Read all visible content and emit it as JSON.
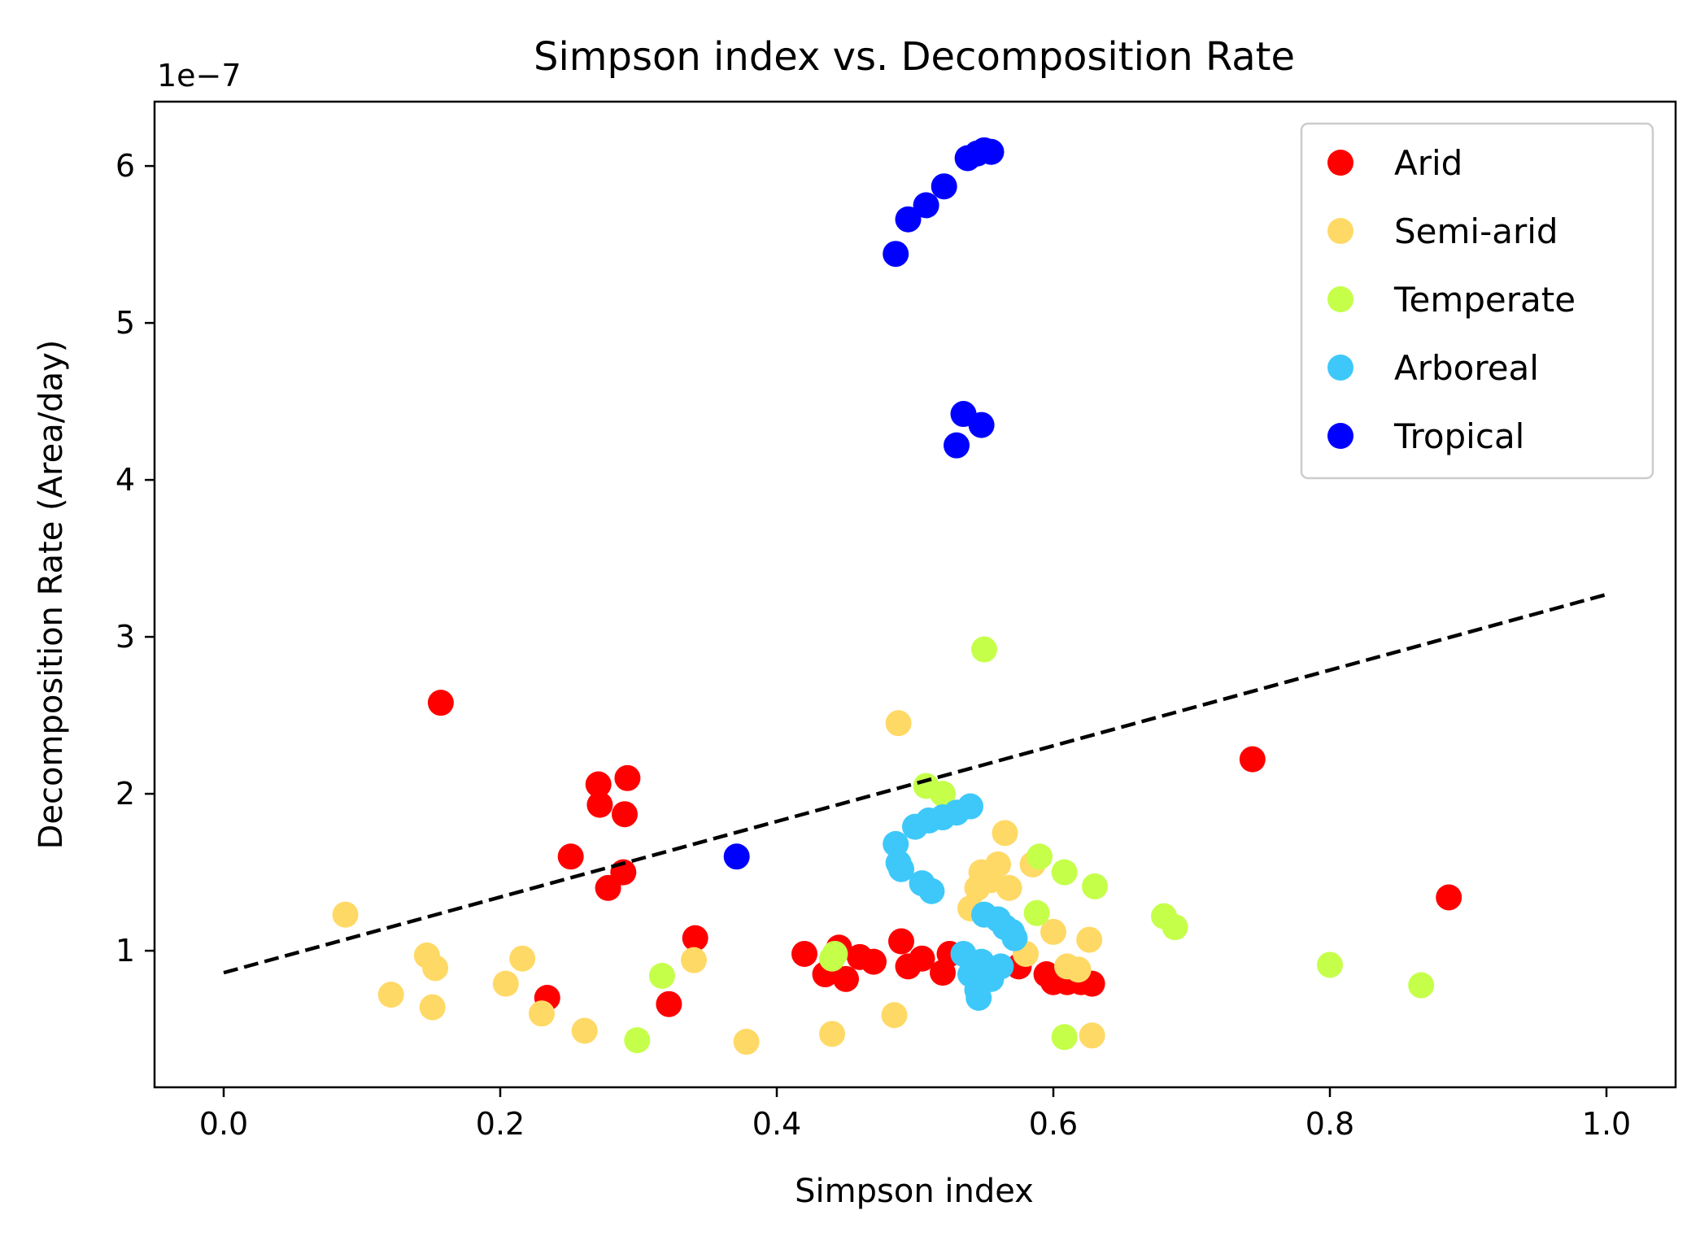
{
  "chart_data": {
    "type": "scatter",
    "title": "Simpson index vs. Decomposition Rate",
    "xlabel": "Simpson index",
    "ylabel": "Decomposition Rate (Area/day)",
    "y_offset_label": "1e−7",
    "xlim": [
      -0.05,
      1.05
    ],
    "ylim": [
      0.13,
      6.41
    ],
    "x_ticks": [
      0.0,
      0.2,
      0.4,
      0.6,
      0.8,
      1.0
    ],
    "x_tick_labels": [
      "0.0",
      "0.2",
      "0.4",
      "0.6",
      "0.8",
      "1.0"
    ],
    "y_ticks": [
      1,
      2,
      3,
      4,
      5,
      6
    ],
    "y_tick_labels": [
      "1",
      "2",
      "3",
      "4",
      "5",
      "6"
    ],
    "grid": false,
    "legend_position": "top-right",
    "trendline": {
      "style": "dashed",
      "color": "#000000",
      "x": [
        0.0,
        1.0
      ],
      "y": [
        0.86,
        3.27
      ]
    },
    "series": [
      {
        "name": "Arid",
        "color": "#ff0000",
        "points": [
          [
            0.157,
            2.58
          ],
          [
            0.234,
            0.7
          ],
          [
            0.251,
            1.6
          ],
          [
            0.271,
            2.06
          ],
          [
            0.272,
            1.93
          ],
          [
            0.278,
            1.4
          ],
          [
            0.289,
            1.5
          ],
          [
            0.29,
            1.87
          ],
          [
            0.292,
            2.1
          ],
          [
            0.322,
            0.66
          ],
          [
            0.341,
            1.08
          ],
          [
            0.42,
            0.98
          ],
          [
            0.435,
            0.85
          ],
          [
            0.445,
            1.02
          ],
          [
            0.45,
            0.82
          ],
          [
            0.46,
            0.96
          ],
          [
            0.47,
            0.93
          ],
          [
            0.49,
            1.06
          ],
          [
            0.495,
            0.9
          ],
          [
            0.505,
            0.95
          ],
          [
            0.52,
            0.86
          ],
          [
            0.525,
            0.98
          ],
          [
            0.575,
            0.9
          ],
          [
            0.595,
            0.85
          ],
          [
            0.6,
            0.8
          ],
          [
            0.61,
            0.8
          ],
          [
            0.62,
            0.8
          ],
          [
            0.628,
            0.79
          ],
          [
            0.744,
            2.22
          ],
          [
            0.886,
            1.34
          ]
        ]
      },
      {
        "name": "Semi-arid",
        "color": "#ffd966",
        "points": [
          [
            0.088,
            1.23
          ],
          [
            0.121,
            0.72
          ],
          [
            0.147,
            0.97
          ],
          [
            0.151,
            0.64
          ],
          [
            0.153,
            0.89
          ],
          [
            0.204,
            0.79
          ],
          [
            0.216,
            0.95
          ],
          [
            0.23,
            0.6
          ],
          [
            0.261,
            0.49
          ],
          [
            0.34,
            0.94
          ],
          [
            0.378,
            0.42
          ],
          [
            0.44,
            0.47
          ],
          [
            0.485,
            0.59
          ],
          [
            0.488,
            2.45
          ],
          [
            0.54,
            1.27
          ],
          [
            0.545,
            1.4
          ],
          [
            0.548,
            1.5
          ],
          [
            0.555,
            1.45
          ],
          [
            0.56,
            1.55
          ],
          [
            0.565,
            1.75
          ],
          [
            0.568,
            1.4
          ],
          [
            0.58,
            0.98
          ],
          [
            0.585,
            1.55
          ],
          [
            0.6,
            1.12
          ],
          [
            0.61,
            0.9
          ],
          [
            0.618,
            0.88
          ],
          [
            0.626,
            1.07
          ],
          [
            0.628,
            0.46
          ]
        ]
      },
      {
        "name": "Temperate",
        "color": "#c5ff4a",
        "points": [
          [
            0.299,
            0.43
          ],
          [
            0.317,
            0.84
          ],
          [
            0.44,
            0.95
          ],
          [
            0.442,
            0.98
          ],
          [
            0.508,
            2.05
          ],
          [
            0.52,
            2.0
          ],
          [
            0.55,
            2.92
          ],
          [
            0.588,
            1.24
          ],
          [
            0.59,
            1.6
          ],
          [
            0.608,
            1.5
          ],
          [
            0.608,
            0.45
          ],
          [
            0.63,
            1.41
          ],
          [
            0.68,
            1.22
          ],
          [
            0.688,
            1.15
          ],
          [
            0.8,
            0.91
          ],
          [
            0.866,
            0.78
          ]
        ]
      },
      {
        "name": "Arboreal",
        "color": "#3ec8fa",
        "points": [
          [
            0.486,
            1.68
          ],
          [
            0.488,
            1.56
          ],
          [
            0.49,
            1.52
          ],
          [
            0.5,
            1.79
          ],
          [
            0.505,
            1.43
          ],
          [
            0.51,
            1.83
          ],
          [
            0.512,
            1.38
          ],
          [
            0.52,
            1.85
          ],
          [
            0.53,
            1.88
          ],
          [
            0.535,
            0.98
          ],
          [
            0.54,
            0.85
          ],
          [
            0.54,
            1.92
          ],
          [
            0.545,
            0.75
          ],
          [
            0.546,
            0.7
          ],
          [
            0.548,
            0.93
          ],
          [
            0.55,
            1.23
          ],
          [
            0.555,
            0.82
          ],
          [
            0.56,
            1.2
          ],
          [
            0.562,
            0.9
          ],
          [
            0.565,
            1.15
          ],
          [
            0.57,
            1.12
          ],
          [
            0.572,
            1.08
          ]
        ]
      },
      {
        "name": "Tropical",
        "color": "#0000ff",
        "points": [
          [
            0.371,
            1.6
          ],
          [
            0.486,
            5.44
          ],
          [
            0.495,
            5.66
          ],
          [
            0.508,
            5.75
          ],
          [
            0.521,
            5.87
          ],
          [
            0.53,
            4.22
          ],
          [
            0.535,
            4.42
          ],
          [
            0.538,
            6.05
          ],
          [
            0.545,
            6.08
          ],
          [
            0.548,
            4.35
          ],
          [
            0.55,
            6.1
          ],
          [
            0.555,
            6.09
          ]
        ]
      }
    ]
  }
}
